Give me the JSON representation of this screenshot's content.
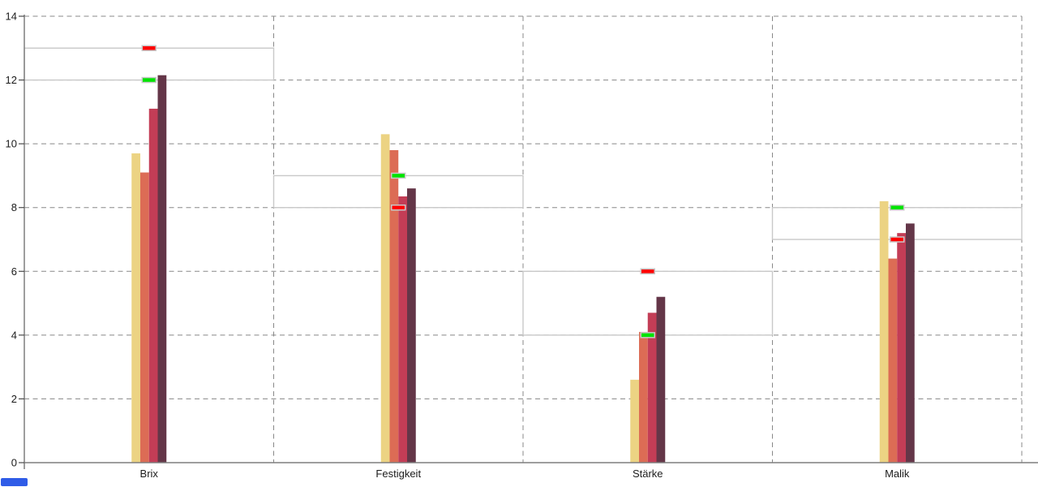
{
  "chart_data": {
    "type": "bar",
    "title": "",
    "categories": [
      "Brix",
      "Festigkeit",
      "Stärke",
      "Malik"
    ],
    "series": [
      {
        "color": "#ECD383",
        "values": [
          9.7,
          10.3,
          2.6,
          8.2
        ]
      },
      {
        "color": "#DC6C55",
        "values": [
          9.1,
          9.8,
          4.1,
          6.4
        ]
      },
      {
        "color": "#C33D56",
        "values": [
          11.1,
          8.35,
          4.7,
          7.2
        ]
      },
      {
        "color": "#643648",
        "values": [
          12.15,
          8.6,
          5.2,
          7.5
        ]
      }
    ],
    "targets": [
      {
        "category": "Brix",
        "red": 13,
        "green": 12
      },
      {
        "category": "Festigkeit",
        "red": 8,
        "green": 9
      },
      {
        "category": "Stärke",
        "red": 6,
        "green": 4
      },
      {
        "category": "Malik",
        "red": 7,
        "green": 8
      }
    ],
    "y_ticks": [
      0,
      2,
      4,
      6,
      8,
      10,
      12,
      14
    ],
    "ylim": [
      0,
      14
    ],
    "xlabel": "",
    "ylabel": "",
    "legend": "none",
    "grid": "dashed",
    "colors": {
      "target_red": "#FF0000",
      "target_green": "#00E400",
      "marker_border": "#C8C8C8",
      "range_box": "#C9C9C9",
      "gridline": "#888888",
      "axis": "#7F7F7F",
      "tick": "#4A4A4A",
      "text": "#1B1B1B"
    }
  },
  "bottom_left_marker": {
    "color": "#2F5CE7"
  }
}
